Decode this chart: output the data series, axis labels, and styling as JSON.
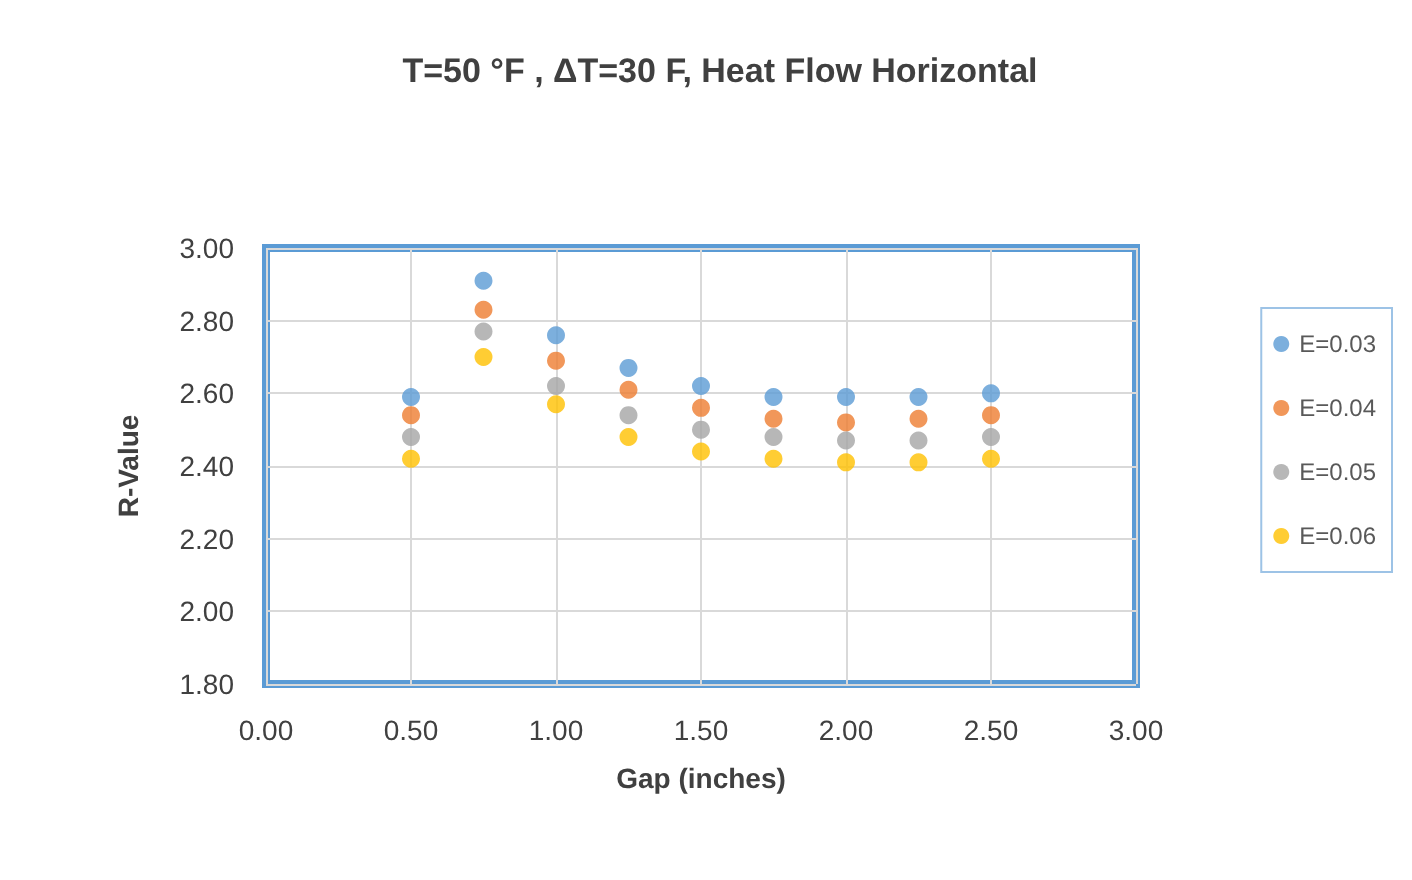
{
  "chart_data": {
    "type": "scatter",
    "title": "T=50 °F , ΔT=30 F, Heat Flow Horizontal",
    "xlabel": "Gap (inches)",
    "ylabel": "R-Value",
    "x": [
      0.5,
      0.75,
      1.0,
      1.25,
      1.5,
      1.75,
      2.0,
      2.25,
      2.5
    ],
    "series": [
      {
        "name": "E=0.03",
        "color": "#5b9bd5",
        "values": [
          2.59,
          2.91,
          2.76,
          2.67,
          2.62,
          2.59,
          2.59,
          2.59,
          2.6
        ]
      },
      {
        "name": "E=0.04",
        "color": "#ed7d31",
        "values": [
          2.54,
          2.83,
          2.69,
          2.61,
          2.56,
          2.53,
          2.52,
          2.53,
          2.54
        ]
      },
      {
        "name": "E=0.05",
        "color": "#a5a5a5",
        "values": [
          2.48,
          2.77,
          2.62,
          2.54,
          2.5,
          2.48,
          2.47,
          2.47,
          2.48
        ]
      },
      {
        "name": "E=0.06",
        "color": "#ffc000",
        "values": [
          2.42,
          2.7,
          2.57,
          2.48,
          2.44,
          2.42,
          2.41,
          2.41,
          2.42
        ]
      }
    ],
    "xlim": [
      0,
      3
    ],
    "xticks": [
      {
        "value": 0,
        "label": "0.00"
      },
      {
        "value": 0.5,
        "label": "0.50"
      },
      {
        "value": 1,
        "label": "1.00"
      },
      {
        "value": 1.5,
        "label": "1.50"
      },
      {
        "value": 2,
        "label": "2.00"
      },
      {
        "value": 2.5,
        "label": "2.50"
      },
      {
        "value": 3,
        "label": "3.00"
      }
    ],
    "ylim": [
      1.8,
      3
    ],
    "yticks": [
      {
        "value": 1.8,
        "label": "1.80"
      },
      {
        "value": 2,
        "label": "2.00"
      },
      {
        "value": 2.2,
        "label": "2.20"
      },
      {
        "value": 2.4,
        "label": "2.40"
      },
      {
        "value": 2.6,
        "label": "2.60"
      },
      {
        "value": 2.8,
        "label": "2.80"
      },
      {
        "value": 3,
        "label": "3.00"
      }
    ],
    "grid": true,
    "legend": "right",
    "marker": "circle"
  }
}
